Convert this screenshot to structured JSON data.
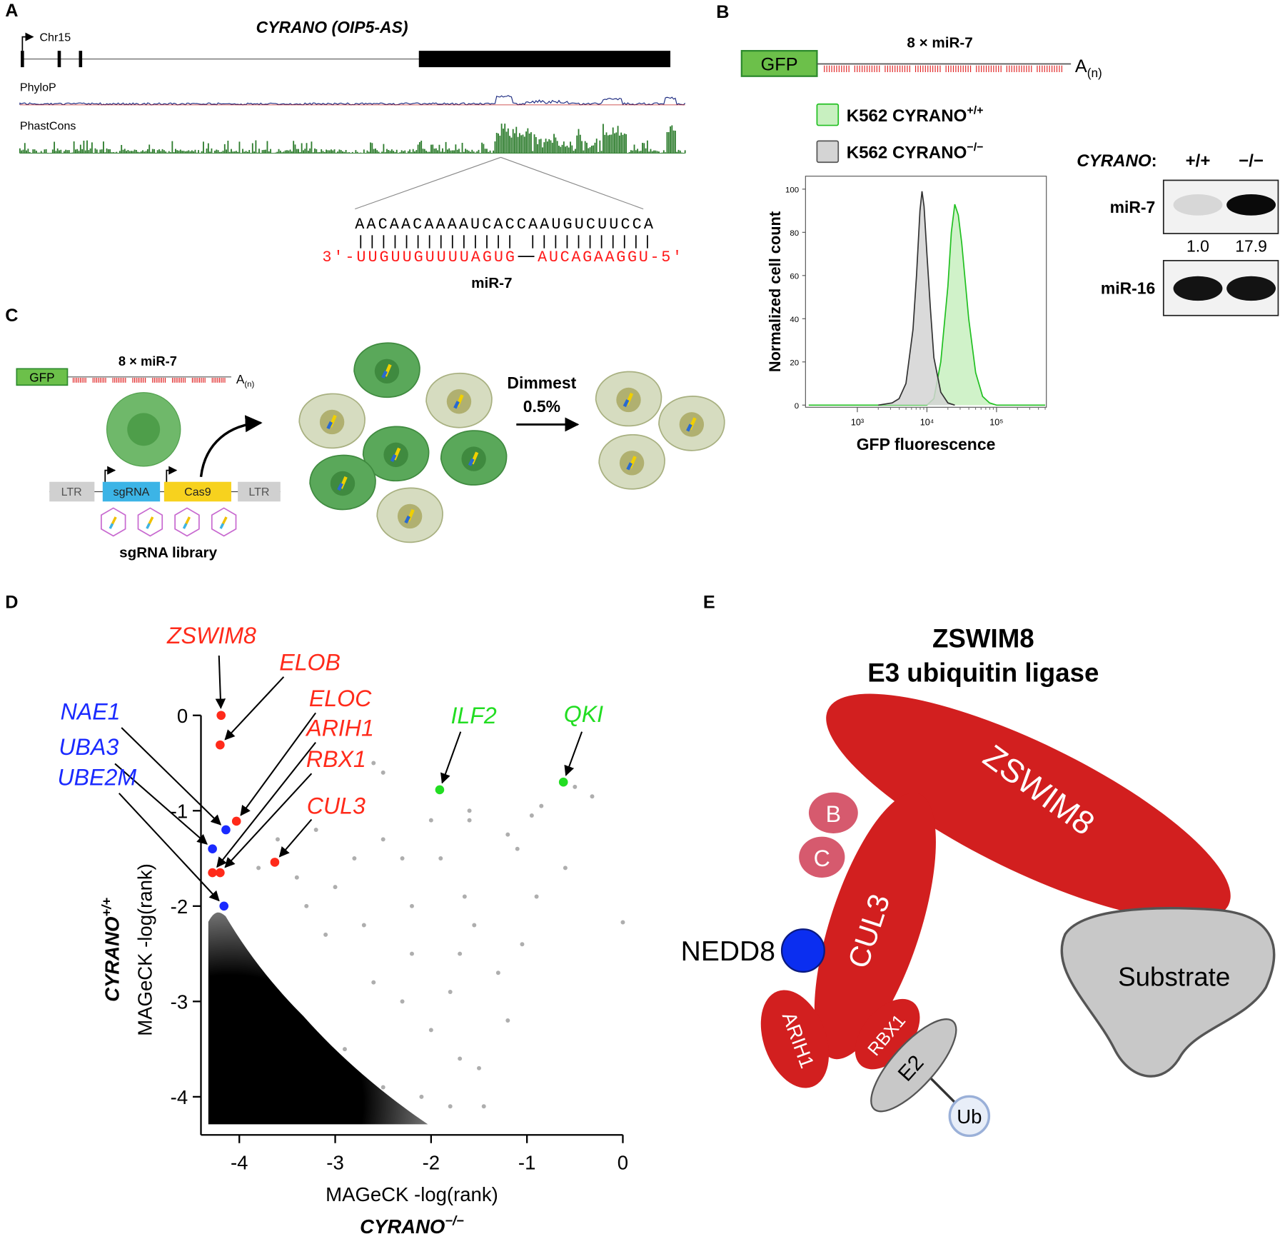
{
  "panel_labels": [
    "A",
    "B",
    "C",
    "D",
    "E"
  ],
  "panel_a": {
    "title": "CYRANO (OIP5-AS)",
    "chromosome": "Chr15",
    "tracks": [
      "PhyloP",
      "PhastCons"
    ],
    "target_site": "AACAACAAAAUCACCAAUGUCUUCCA",
    "mirna_left": "3′-UUGUUGUUUUAGUG",
    "mirna_right": "AUCAGAAGGU-5′",
    "mirna_name": "miR-7"
  },
  "panel_b": {
    "reporter": {
      "gfp": "GFP",
      "label": "8 × miR-7",
      "polya": "A",
      "polya_sub": "(n)"
    },
    "histogram": {
      "type": "line",
      "x_label": "GFP fluorescence",
      "y_label": "Normalized cell count",
      "xscale": "log",
      "xlim": [
        180,
        520000
      ],
      "ylim": [
        -1,
        106
      ],
      "xticks": [
        {
          "value": 1000,
          "label": "10³"
        },
        {
          "value": 10000,
          "label": "10⁴"
        },
        {
          "value": 100000,
          "label": "10⁵"
        }
      ],
      "yticks": [
        0,
        20,
        40,
        60,
        80,
        100
      ],
      "series": [
        {
          "name": "K562 CYRANO",
          "superscript": "+/+",
          "color": "#22c022",
          "fill": "#c8f0c0",
          "x": [
            200,
            10000,
            12600,
            15800,
            20000,
            22400,
            25100,
            28200,
            31600,
            39800,
            50100,
            63100,
            79400,
            100000,
            500000
          ],
          "values": [
            0,
            0,
            3,
            20,
            55,
            80,
            93,
            88,
            75,
            40,
            15,
            4,
            1,
            0,
            0
          ]
        },
        {
          "name": "K562 CYRANO",
          "superscript": "−/−",
          "color": "#333333",
          "fill": "#d4d4d4",
          "x": [
            2000,
            3160,
            3980,
            5000,
            6300,
            7080,
            7940,
            8500,
            9100,
            10000,
            11200,
            12600,
            15800,
            20000,
            25100
          ],
          "values": [
            0,
            1,
            3,
            10,
            35,
            60,
            90,
            99,
            92,
            70,
            45,
            22,
            6,
            1,
            0
          ]
        }
      ]
    },
    "blot": {
      "header": "CYRANO",
      "header_suffix": ":",
      "lanes": [
        "+/+",
        "−/−"
      ],
      "rows": [
        "miR-7",
        "miR-16"
      ],
      "values": [
        1.0,
        17.9
      ],
      "value_labels": [
        "1.0",
        "17.9"
      ]
    }
  },
  "panel_c": {
    "reporter": {
      "gfp": "GFP",
      "label": "8 × miR-7",
      "polya": "A",
      "polya_sub": "(n)"
    },
    "construct": [
      "LTR",
      "sgRNA",
      "Cas9",
      "LTR"
    ],
    "library": "sgRNA library",
    "sort_label": [
      "Dimmest",
      "0.5%"
    ]
  },
  "panel_d": {
    "type": "scatter",
    "x_label": "MAGeCK -log(rank)",
    "x_condition": "CYRANO",
    "x_condition_sup": "−/−",
    "y_label": "MAGeCK -log(rank)",
    "y_condition": "CYRANO",
    "y_condition_sup": "+/+",
    "xlim": [
      -4.4,
      0
    ],
    "ylim": [
      -4.4,
      0
    ],
    "xticks": [
      -4,
      -3,
      -2,
      -1,
      0
    ],
    "yticks": [
      0,
      -1,
      -2,
      -3,
      -4
    ],
    "highlights": [
      {
        "name": "ZSWIM8",
        "color": "#ff2a1a",
        "x": -4.19,
        "y": 0
      },
      {
        "name": "ELOB",
        "color": "#ff2a1a",
        "x": -4.2,
        "y": -0.31
      },
      {
        "name": "ELOC",
        "color": "#ff2a1a",
        "x": -4.03,
        "y": -1.11
      },
      {
        "name": "ARIH1",
        "color": "#ff2a1a",
        "x": -4.28,
        "y": -1.65
      },
      {
        "name": "RBX1",
        "color": "#ff2a1a",
        "x": -4.2,
        "y": -1.65
      },
      {
        "name": "CUL3",
        "color": "#ff2a1a",
        "x": -3.63,
        "y": -1.54
      },
      {
        "name": "NAE1",
        "color": "#1a2aff",
        "x": -4.14,
        "y": -1.2
      },
      {
        "name": "UBA3",
        "color": "#1a2aff",
        "x": -4.28,
        "y": -1.4
      },
      {
        "name": "UBE2M",
        "color": "#1a2aff",
        "x": -4.16,
        "y": -2.0
      },
      {
        "name": "ILF2",
        "color": "#22dd22",
        "x": -1.91,
        "y": -0.78
      },
      {
        "name": "QKI",
        "color": "#22dd22",
        "x": -0.62,
        "y": -0.7
      }
    ],
    "points": {
      "color": "#9a9a9a",
      "x": [
        0,
        -0.32,
        -0.5,
        -0.85,
        -0.95,
        -1.2,
        -1.1,
        -1.6,
        -1.6,
        -1.65,
        -1.55,
        -1.05,
        -0.9,
        -1.3,
        -1.5,
        -2.5,
        -2.0,
        -2.3,
        -2.5,
        -2.8,
        -3.0,
        -2.7,
        -2.2,
        -1.8,
        -2.0,
        -1.7,
        -1.8,
        -2.3,
        -2.6,
        -3.1,
        -3.4,
        -3.8,
        -3.3,
        -2.9,
        -2.5,
        -2.1,
        -1.45,
        -3.2,
        -3.6,
        -2.2,
        -1.9,
        -1.7,
        -0.6,
        -1.2,
        -2.6
      ],
      "y": [
        -2.17,
        -0.85,
        -0.75,
        -0.95,
        -1.05,
        -1.25,
        -1.4,
        -1.0,
        -1.1,
        -1.9,
        -2.2,
        -2.4,
        -1.9,
        -2.7,
        -3.7,
        -0.6,
        -1.1,
        -1.5,
        -1.3,
        -1.5,
        -1.8,
        -2.2,
        -2.5,
        -2.9,
        -3.3,
        -3.6,
        -4.1,
        -3.0,
        -2.8,
        -2.3,
        -1.7,
        -1.6,
        -2.0,
        -3.5,
        -3.9,
        -4.0,
        -4.1,
        -1.2,
        -1.3,
        -2.0,
        -1.5,
        -2.5,
        -1.6,
        -3.2,
        -0.5
      ]
    }
  },
  "panel_e": {
    "title": [
      "ZSWIM8",
      "E3 ubiquitin ligase"
    ],
    "components": [
      "ZSWIM8",
      "B",
      "C",
      "CUL3",
      "NEDD8",
      "ARIH1",
      "RBX1",
      "E2",
      "Ub",
      "Substrate"
    ]
  }
}
